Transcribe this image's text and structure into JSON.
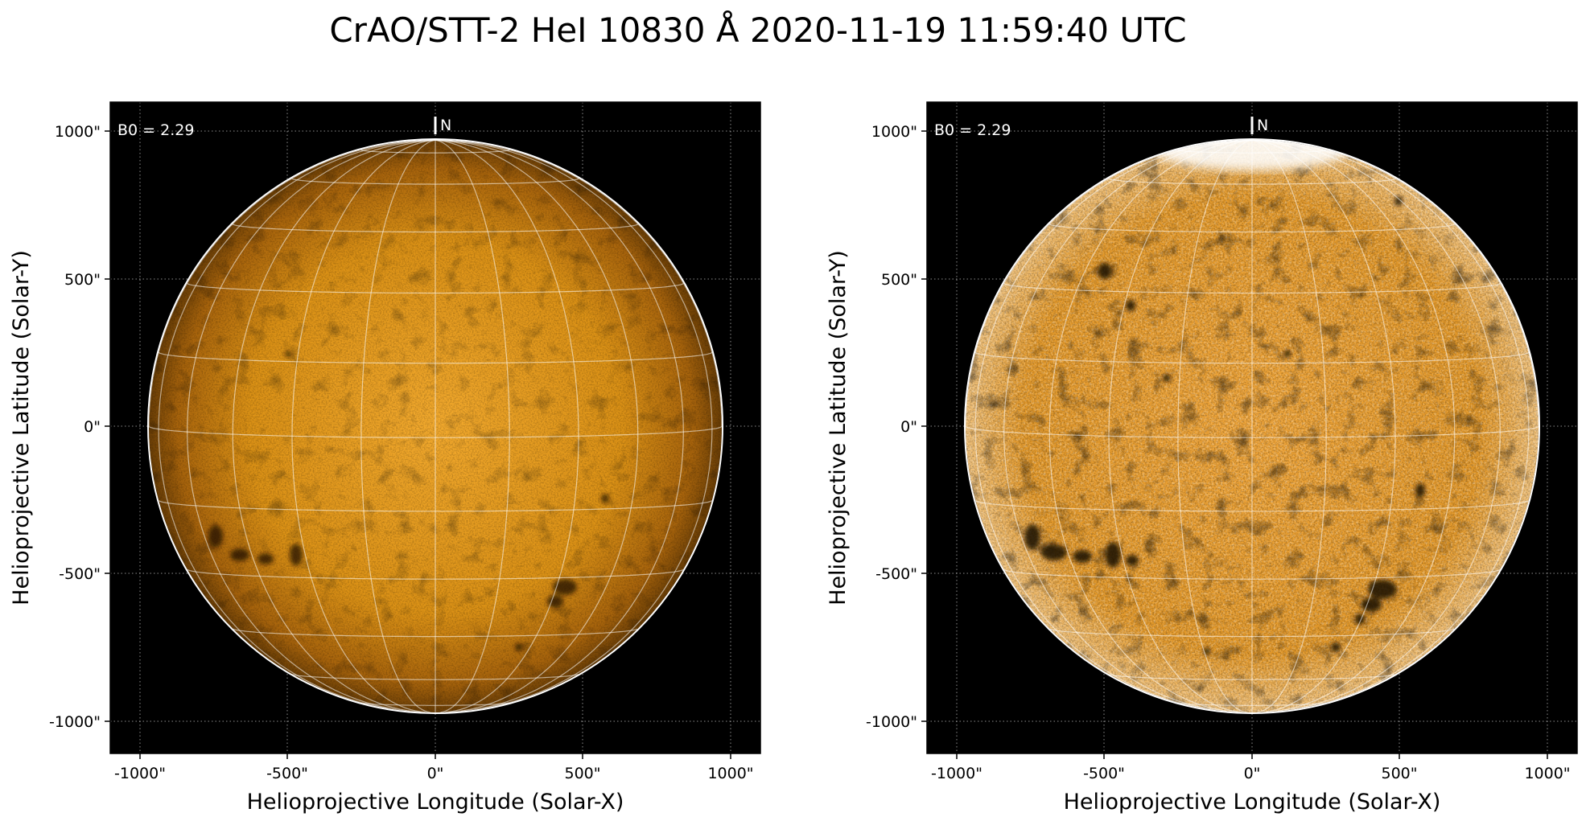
{
  "title": "CrAO/STT-2 HeI 10830 Å 2020-11-19 11:59:40 UTC",
  "colors": {
    "background": "#000000",
    "disk_center": "#f3aa2e",
    "disk_mid": "#dc9216",
    "disk_limb": "#6a3e06",
    "grid": "#ffffff",
    "limb": "#ffffff"
  },
  "panels": [
    {
      "variant": "original",
      "ylabel": "Helioprojective Latitude (Solar-Y)",
      "xlabel": "Helioprojective Longitude (Solar-X)",
      "xticks": [
        "-1000\"",
        "-500\"",
        "0\"",
        "500\"",
        "1000\""
      ],
      "yticks": [
        "1000\"",
        "500\"",
        "0\"",
        "-500\"",
        "-1000\""
      ],
      "b0_label": "B0 = 2.29",
      "north_label": "N"
    },
    {
      "variant": "enhanced",
      "ylabel": "Helioprojective Latitude (Solar-Y)",
      "xlabel": "Helioprojective Longitude (Solar-X)",
      "xticks": [
        "-1000\"",
        "-500\"",
        "0\"",
        "500\"",
        "1000\""
      ],
      "yticks": [
        "1000\"",
        "500\"",
        "0\"",
        "-500\"",
        "-1000\""
      ],
      "b0_label": "B0 = 2.29",
      "north_label": "N"
    }
  ],
  "image_params": {
    "xlim_arcsec": [
      -1100,
      1100
    ],
    "ylim_arcsec": [
      -1100,
      1100
    ],
    "solar_radius_arcsec": 970,
    "b0_deg": 2.29,
    "tick_values_arcsec": [
      -1000,
      -500,
      0,
      500,
      1000
    ],
    "grid_spacing_deg": 15
  }
}
